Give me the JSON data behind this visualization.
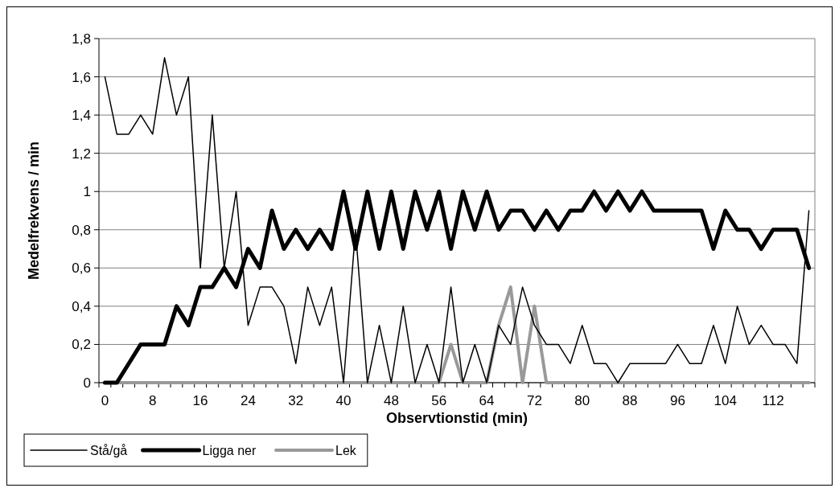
{
  "chart_data": {
    "type": "line",
    "xlabel": "Observtionstid (min)",
    "ylabel": "Medelfrekvens / min",
    "categories": [
      "0",
      null,
      null,
      null,
      "8",
      null,
      null,
      null,
      "16",
      null,
      null,
      null,
      "24",
      null,
      null,
      null,
      "32",
      null,
      null,
      null,
      "40",
      null,
      null,
      null,
      "48",
      null,
      null,
      null,
      "56",
      null,
      null,
      null,
      "64",
      null,
      null,
      null,
      "72",
      null,
      null,
      null,
      "80",
      null,
      null,
      null,
      "88",
      null,
      null,
      null,
      "96",
      null,
      null,
      null,
      "104",
      null,
      null,
      null,
      "112",
      null,
      null,
      null
    ],
    "series": [
      {
        "name": "Stå/gå",
        "color": "#000000",
        "values": [
          1.6,
          1.3,
          1.3,
          1.4,
          1.3,
          1.7,
          1.4,
          1.6,
          0.6,
          1.4,
          0.6,
          1.0,
          0.3,
          0.5,
          0.5,
          0.4,
          0.1,
          0.5,
          0.3,
          0.5,
          0,
          0.8,
          0,
          0.3,
          0,
          0.4,
          0,
          0.2,
          0,
          0.5,
          0,
          0.2,
          0,
          0.3,
          0.2,
          0.5,
          0.3,
          0.2,
          0.2,
          0.1,
          0.3,
          0.1,
          0.1,
          0,
          0.1,
          0.1,
          0.1,
          0.1,
          0.2,
          0.1,
          0.1,
          0.3,
          0.1,
          0.4,
          0.2,
          0.3,
          0.2,
          0.2,
          0.1,
          0.9
        ]
      },
      {
        "name": "Ligga ner",
        "color": "#000000",
        "values": [
          0,
          0,
          0.1,
          0.2,
          0.2,
          0.2,
          0.4,
          0.3,
          0.5,
          0.5,
          0.6,
          0.5,
          0.7,
          0.6,
          0.9,
          0.7,
          0.8,
          0.7,
          0.8,
          0.7,
          1.0,
          0.7,
          1.0,
          0.7,
          1.0,
          0.7,
          1.0,
          0.8,
          1.0,
          0.7,
          1.0,
          0.8,
          1.0,
          0.8,
          0.9,
          0.9,
          0.8,
          0.9,
          0.8,
          0.9,
          0.9,
          1.0,
          0.9,
          1.0,
          0.9,
          1.0,
          0.9,
          0.9,
          0.9,
          0.9,
          0.9,
          0.7,
          0.9,
          0.8,
          0.8,
          0.7,
          0.8,
          0.8,
          0.8,
          0.6
        ]
      },
      {
        "name": "Lek",
        "color": "#999999",
        "values": [
          0,
          0,
          0,
          0,
          0,
          0,
          0,
          0,
          0,
          0,
          0,
          0,
          0,
          0,
          0,
          0,
          0,
          0,
          0,
          0,
          0,
          0,
          0,
          0,
          0,
          0,
          0,
          0,
          0,
          0.2,
          0,
          0,
          0,
          0.3,
          0.5,
          0,
          0.4,
          0,
          0,
          0,
          0,
          0,
          0,
          0,
          0,
          0,
          0,
          0,
          0,
          0,
          0,
          0,
          0,
          0,
          0,
          0,
          0,
          0,
          0,
          0
        ]
      }
    ],
    "ylim": [
      0,
      1.8
    ],
    "yticks": [
      0,
      {
        "value": 0.2,
        "label": "0,2"
      },
      {
        "value": 0.4,
        "label": "0,4"
      },
      {
        "value": 0.6,
        "label": "0,6"
      },
      {
        "value": 0.8,
        "label": "0,8"
      },
      1,
      {
        "value": 1.2,
        "label": "1,2"
      },
      {
        "value": 1.4,
        "label": "1,4"
      },
      {
        "value": 1.6,
        "label": "1,6"
      },
      {
        "value": 1.8,
        "label": "1,8"
      }
    ],
    "grid": "y",
    "legend": "bottom left",
    "marker": "none",
    "line_style": "solid"
  }
}
